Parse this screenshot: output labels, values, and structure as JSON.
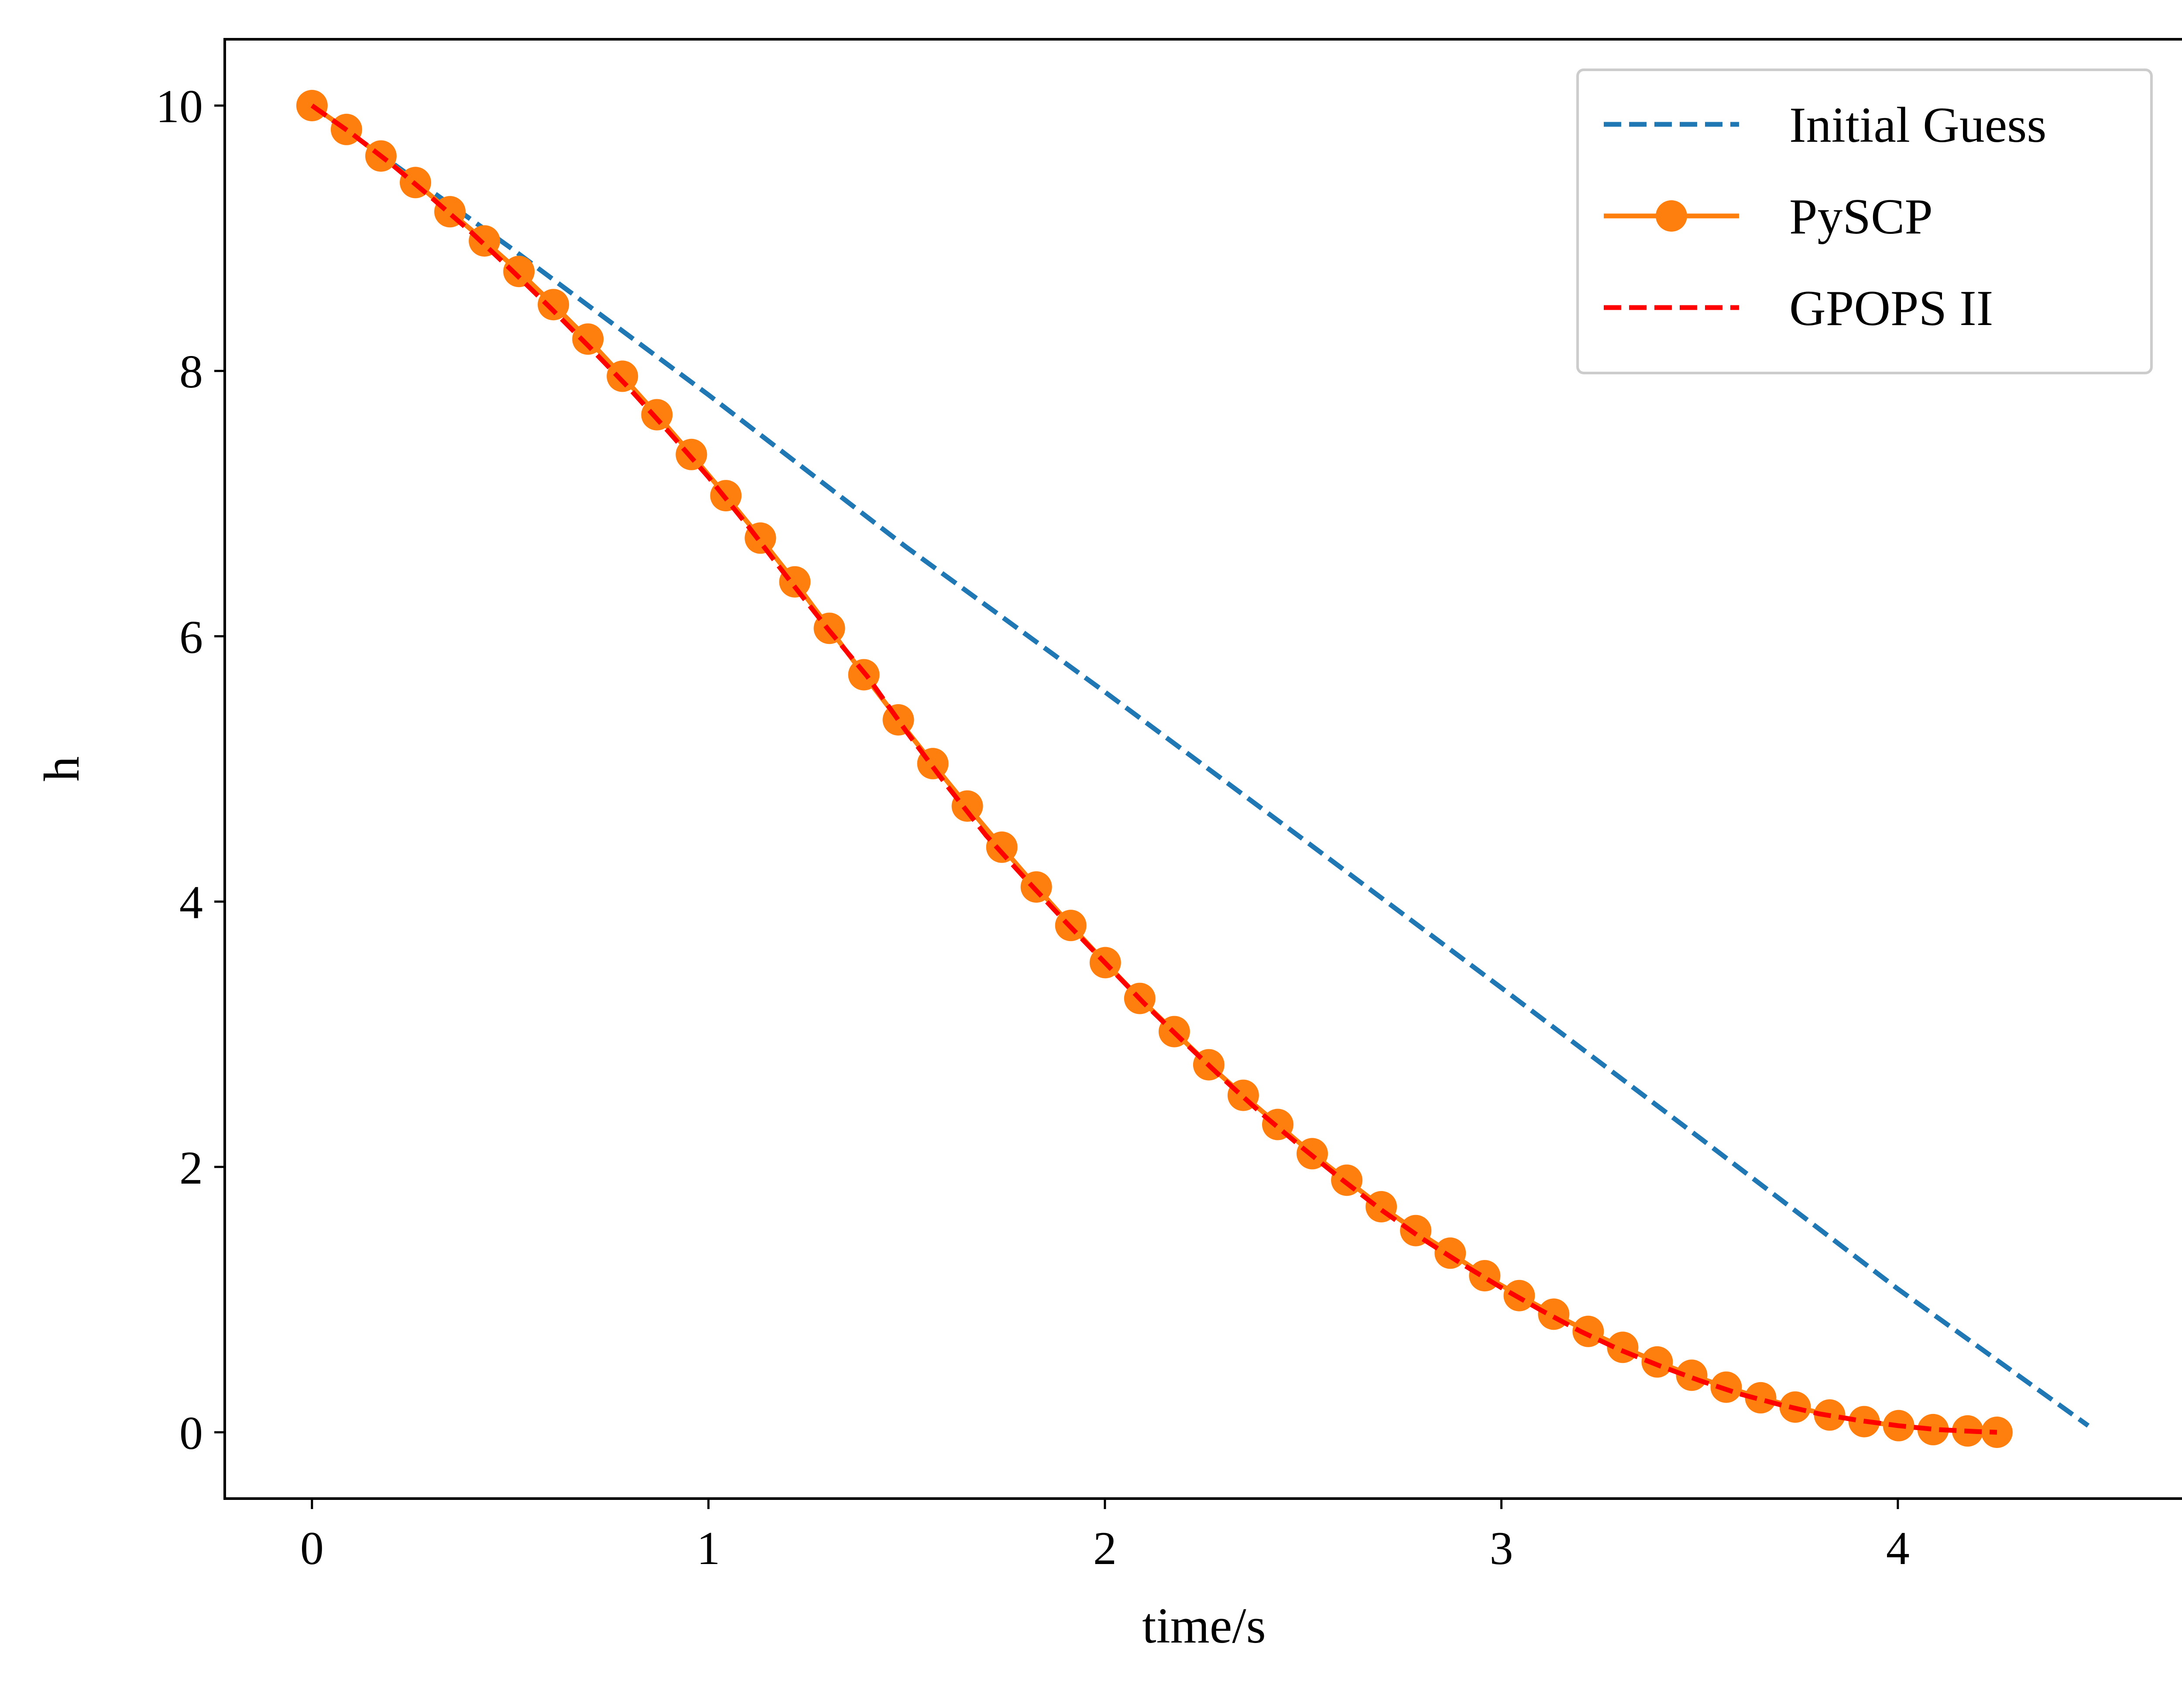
{
  "chart_data": {
    "type": "line",
    "title": "",
    "xlabel": "time/s",
    "ylabel": "h",
    "xlim": [
      -0.22,
      4.72
    ],
    "ylim": [
      -0.5,
      10.5
    ],
    "xticks": [
      0,
      1,
      2,
      3,
      4
    ],
    "yticks": [
      0,
      2,
      4,
      6,
      8,
      10
    ],
    "grid": false,
    "legend": {
      "placement": "top-right"
    },
    "series": [
      {
        "name": "Initial Guess",
        "color": "#1f77b4",
        "style": "dashed",
        "x": [
          0.0,
          0.5,
          1.0,
          1.5,
          2.0,
          2.5,
          3.0,
          3.5,
          4.0,
          4.48
        ],
        "y": [
          10.0,
          8.93,
          7.82,
          6.67,
          5.58,
          4.47,
          3.35,
          2.22,
          1.08,
          0.05
        ]
      },
      {
        "name": "PySCP",
        "color": "#ff7f0e",
        "style": "solid-markers",
        "x": [
          0.0,
          0.087,
          0.174,
          0.261,
          0.348,
          0.435,
          0.522,
          0.609,
          0.696,
          0.783,
          0.87,
          0.957,
          1.044,
          1.131,
          1.218,
          1.305,
          1.392,
          1.479,
          1.566,
          1.653,
          1.74,
          1.827,
          1.914,
          2.001,
          2.088,
          2.175,
          2.262,
          2.349,
          2.436,
          2.523,
          2.61,
          2.697,
          2.784,
          2.871,
          2.958,
          3.045,
          3.132,
          3.219,
          3.306,
          3.393,
          3.48,
          3.567,
          3.654,
          3.741,
          3.828,
          3.915,
          4.002,
          4.089,
          4.176,
          4.25
        ],
        "y": [
          10.0,
          9.82,
          9.62,
          9.42,
          9.2,
          8.98,
          8.75,
          8.5,
          8.24,
          7.96,
          7.67,
          7.37,
          7.06,
          6.74,
          6.41,
          6.06,
          5.71,
          5.37,
          5.04,
          4.72,
          4.41,
          4.11,
          3.82,
          3.54,
          3.27,
          3.02,
          2.77,
          2.54,
          2.32,
          2.1,
          1.9,
          1.7,
          1.52,
          1.35,
          1.18,
          1.03,
          0.89,
          0.76,
          0.64,
          0.53,
          0.43,
          0.34,
          0.26,
          0.19,
          0.13,
          0.08,
          0.05,
          0.02,
          0.01,
          0.0
        ]
      },
      {
        "name": "GPOPS II",
        "color": "#ff0000",
        "style": "dashed",
        "x": [
          0.0,
          0.1,
          0.2,
          0.3,
          0.4,
          0.5,
          0.6,
          0.7,
          0.8,
          0.9,
          1.0,
          1.1,
          1.2,
          1.3,
          1.4,
          1.5,
          1.6,
          1.7,
          1.8,
          1.9,
          2.0,
          2.1,
          2.2,
          2.3,
          2.4,
          2.5,
          2.6,
          2.7,
          2.8,
          2.9,
          3.0,
          3.1,
          3.2,
          3.3,
          3.4,
          3.5,
          3.6,
          3.7,
          3.8,
          3.9,
          4.0,
          4.1,
          4.2,
          4.25
        ],
        "y": [
          10.0,
          9.79,
          9.56,
          9.31,
          9.05,
          8.77,
          8.48,
          8.18,
          7.87,
          7.54,
          7.2,
          6.83,
          6.44,
          6.06,
          5.7,
          5.28,
          4.88,
          4.5,
          4.17,
          3.85,
          3.54,
          3.23,
          2.94,
          2.66,
          2.39,
          2.14,
          1.9,
          1.67,
          1.46,
          1.27,
          1.09,
          0.92,
          0.76,
          0.62,
          0.5,
          0.39,
          0.29,
          0.21,
          0.14,
          0.09,
          0.05,
          0.02,
          0.005,
          0.0
        ]
      }
    ]
  }
}
